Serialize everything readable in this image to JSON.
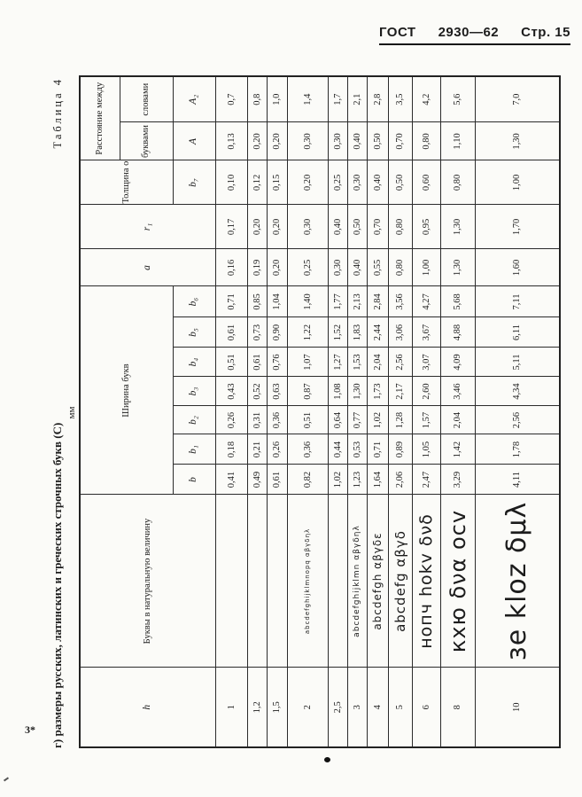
{
  "header": {
    "gost": "ГОСТ",
    "number": "2930—62",
    "page": "Стр. 15"
  },
  "caption": "г) размеры русских, латинских и греческих строчных букв (С)",
  "table_label": "Таблица 4",
  "units": "мм",
  "signature": "3*",
  "table": {
    "columns": {
      "h": "h",
      "letters": "Буквы в натуральную величину",
      "width_group": "Ширина букв",
      "a": "a",
      "r1": "r₁",
      "thickness": "Толщина обводки",
      "spacing_group": "Расстояние между",
      "spacing_letters": "буквами",
      "spacing_words": "словами",
      "width_subs": [
        "b",
        "b₁",
        "b₂",
        "b₃",
        "b₄",
        "b₅",
        "b₆"
      ],
      "thickness_sub": "b₇",
      "spacing_letters_sub": "A",
      "spacing_words_sub": "A₂"
    },
    "rows": [
      {
        "h": "1",
        "sample": "",
        "values": [
          "0,41",
          "0,18",
          "0,26",
          "0,43",
          "0,51",
          "0,61",
          "0,71",
          "0,16",
          "0,17",
          "0,10",
          "0,13",
          "0,7"
        ]
      },
      {
        "h": "1,2",
        "sample": "",
        "values": [
          "0,49",
          "0,21",
          "0,31",
          "0,52",
          "0,61",
          "0,73",
          "0,85",
          "0,19",
          "0,20",
          "0,12",
          "0,20",
          "0,8"
        ]
      },
      {
        "h": "1,5",
        "sample": "",
        "values": [
          "0,61",
          "0,26",
          "0,36",
          "0,63",
          "0,76",
          "0,90",
          "1,04",
          "0,20",
          "0,20",
          "0,15",
          "0,20",
          "1,0"
        ]
      },
      {
        "h": "2",
        "sample": "abcdefghijklmnopq  αβγδηλ",
        "values": [
          "0,82",
          "0,36",
          "0,51",
          "0,87",
          "1,07",
          "1,22",
          "1,40",
          "0,25",
          "0,30",
          "0,20",
          "0,30",
          "1,4"
        ]
      },
      {
        "h": "2,5",
        "sample": "",
        "values": [
          "1,02",
          "0,44",
          "0,64",
          "1,08",
          "1,27",
          "1,52",
          "1,77",
          "0,30",
          "0,40",
          "0,25",
          "0,30",
          "1,7"
        ]
      },
      {
        "h": "3",
        "sample": "abcdefghijklmn  αβγδηλ",
        "values": [
          "1,23",
          "0,53",
          "0,77",
          "1,30",
          "1,53",
          "1,83",
          "2,13",
          "0,40",
          "0,50",
          "0,30",
          "0,40",
          "2,1"
        ]
      },
      {
        "h": "4",
        "sample": "abcdefgh  αβγδε",
        "values": [
          "1,64",
          "0,71",
          "1,02",
          "1,73",
          "2,04",
          "2,44",
          "2,84",
          "0,55",
          "0,70",
          "0,40",
          "0,50",
          "2,8"
        ]
      },
      {
        "h": "5",
        "sample": "abcdefg  αβγδ",
        "values": [
          "2,06",
          "0,89",
          "1,28",
          "2,17",
          "2,56",
          "3,06",
          "3,56",
          "0,80",
          "0,80",
          "0,50",
          "0,70",
          "3,5"
        ]
      },
      {
        "h": "6",
        "sample": "нопч hokv δνδ",
        "values": [
          "2,47",
          "1,05",
          "1,57",
          "2,60",
          "3,07",
          "3,67",
          "4,27",
          "1,00",
          "0,95",
          "0,60",
          "0,80",
          "4,2"
        ]
      },
      {
        "h": "8",
        "sample": "кхю δνα ocv",
        "values": [
          "3,29",
          "1,42",
          "2,04",
          "3,46",
          "4,09",
          "4,88",
          "5,68",
          "1,30",
          "1,30",
          "0,80",
          "1,10",
          "5,6"
        ]
      },
      {
        "h": "10",
        "sample": "зе kloz δμλ",
        "values": [
          "4,11",
          "1,78",
          "2,56",
          "4,34",
          "5,11",
          "6,11",
          "7,11",
          "1,60",
          "1,70",
          "1,00",
          "1,30",
          "7,0"
        ]
      }
    ]
  }
}
